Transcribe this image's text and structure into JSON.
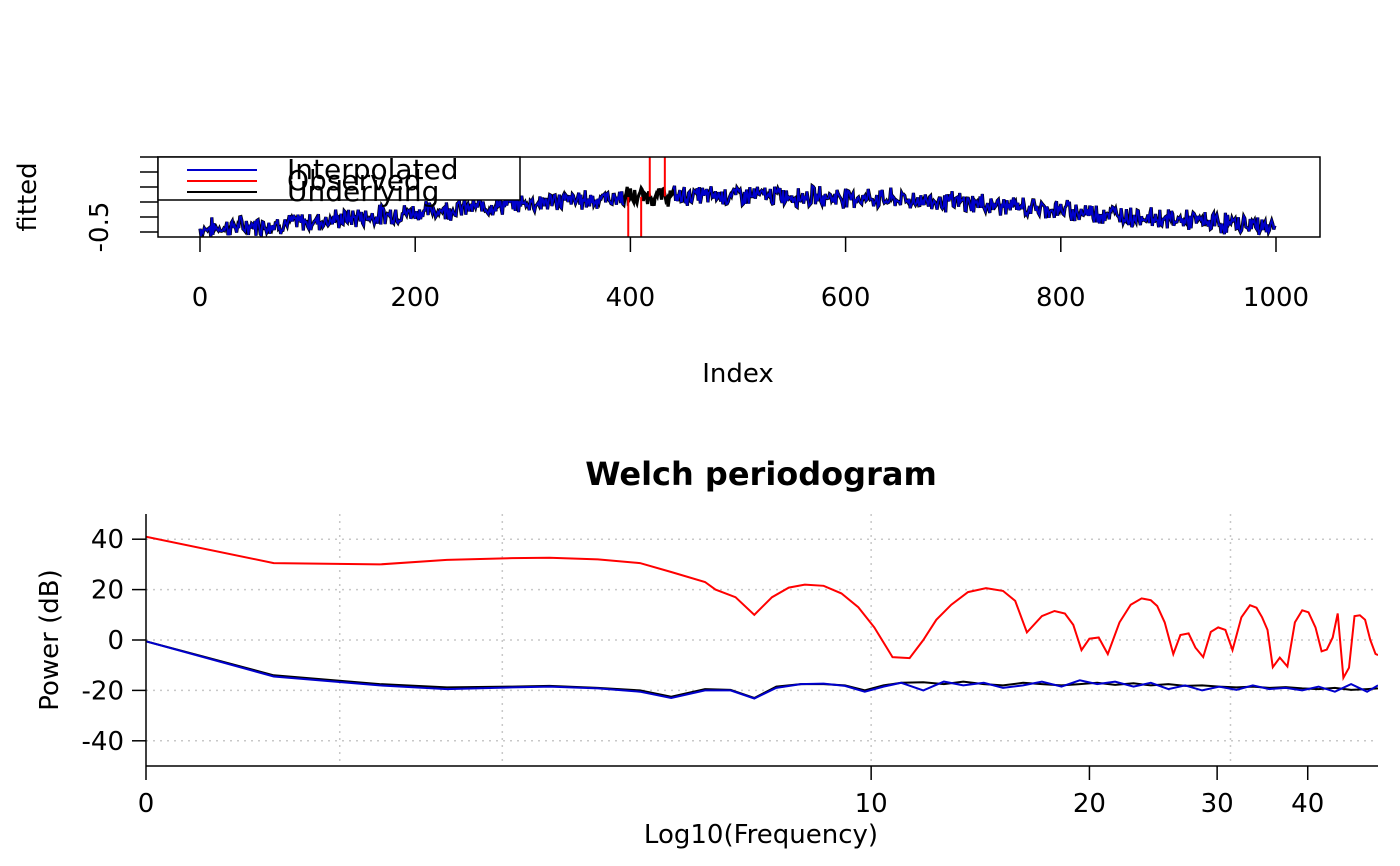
{
  "chart_data": [
    {
      "type": "line",
      "title": "",
      "xlabel": "Index",
      "ylabel": "fitted",
      "xlim": [
        0,
        1000
      ],
      "ylim": [
        -0.6,
        0.2
      ],
      "x_ticks": [
        "0",
        "200",
        "400",
        "600",
        "800",
        "1000"
      ],
      "y_ticks": [
        "-0.5"
      ],
      "legend": {
        "placement": "top-left",
        "entries": [
          {
            "label": "Interpolated",
            "color": "#0000CC"
          },
          {
            "label": "Observed",
            "color": "#FF0000"
          },
          {
            "label": "Underlying",
            "color": "#000000"
          }
        ]
      },
      "series": [
        {
          "name": "Interpolated",
          "color": "#0000CC",
          "n": 1000,
          "trend_x": [
            0,
            100,
            200,
            300,
            400,
            500,
            600,
            700,
            800,
            900,
            1000
          ],
          "trend_y": [
            -0.52,
            -0.45,
            -0.35,
            -0.26,
            -0.2,
            -0.18,
            -0.2,
            -0.25,
            -0.33,
            -0.42,
            -0.5
          ]
        },
        {
          "name": "Observed",
          "color": "#FF0000",
          "gap_spikes": [
            {
              "x": 398,
              "y": -0.6
            },
            {
              "x": 410,
              "y": -0.6
            },
            {
              "x": 418,
              "y": 0.2
            },
            {
              "x": 432,
              "y": 0.2
            }
          ]
        },
        {
          "name": "Underlying",
          "color": "#000000"
        }
      ]
    },
    {
      "type": "line",
      "title": "Welch periodogram",
      "xlabel": "Log10(Frequency)",
      "ylabel": "Power (dB)",
      "log_x": true,
      "xlim": [
        1,
        50
      ],
      "ylim": [
        -50,
        50
      ],
      "grid": true,
      "x_ticks": [
        {
          "value": 1,
          "label": "0"
        },
        {
          "value": 10,
          "label": "10"
        },
        {
          "value": 20,
          "label": "20"
        },
        {
          "value": 30,
          "label": "30"
        },
        {
          "value": 40,
          "label": "40"
        }
      ],
      "x_gridlines": [
        1.85,
        3.1,
        10,
        31.3
      ],
      "y_ticks": [
        40,
        20,
        0,
        -20,
        -40
      ],
      "series": [
        {
          "name": "Observed",
          "color": "#FF0000",
          "x": [
            1,
            1.5,
            2.1,
            2.6,
            3.2,
            3.6,
            4.2,
            4.8,
            5.3,
            5.9,
            6.1,
            6.5,
            6.9,
            7.3,
            7.7,
            8.1,
            8.6,
            9.1,
            9.6,
            10.1,
            10.7,
            11.3,
            11.8,
            12.3,
            12.9,
            13.6,
            14.4,
            15.2,
            15.8,
            16.4,
            17.2,
            17.9,
            18.5,
            19,
            19.5,
            20,
            20.6,
            21.2,
            22,
            22.8,
            23.6,
            24.3,
            24.8,
            25.4,
            26.1,
            26.7,
            27.4,
            28,
            28.7,
            29.4,
            30.1,
            30.8,
            31.5,
            32.4,
            33.3,
            34,
            34.6,
            35.2,
            35.8,
            36.6,
            37.5,
            38.4,
            39.3,
            40.1,
            41,
            41.8,
            42.5,
            43.3,
            44,
            44.8,
            45.6,
            46.4,
            47.2,
            48,
            48.8,
            49.6,
            50
          ],
          "y": [
            41,
            30.5,
            30,
            31.8,
            32.5,
            32.6,
            32,
            30.5,
            27,
            23,
            20,
            17,
            10,
            17,
            20.8,
            22,
            21.5,
            18.5,
            13,
            5,
            -6.8,
            -7.2,
            0,
            8,
            14,
            19,
            20.6,
            19.5,
            15.5,
            3,
            9.5,
            11.5,
            10.5,
            6,
            -4,
            0.5,
            1,
            -5.6,
            7,
            14,
            16.5,
            15.8,
            13.5,
            7,
            -5.6,
            2,
            2.6,
            -3,
            -6.8,
            3.2,
            5,
            4,
            -4,
            9,
            13.8,
            12.8,
            9,
            4,
            -10.8,
            -7,
            -10.5,
            7,
            11.8,
            11,
            5,
            -4.5,
            -3.8,
            1,
            10.5,
            -15,
            -11,
            9.5,
            9.8,
            8,
            0,
            -5.5,
            -6
          ]
        },
        {
          "name": "Underlying",
          "color": "#000000",
          "x": [
            1,
            1.5,
            2.1,
            2.6,
            3.2,
            3.6,
            4.2,
            4.8,
            5.3,
            5.9,
            6.4,
            6.9,
            7.4,
            8,
            8.6,
            9.2,
            9.8,
            10.4,
            11,
            11.8,
            12.6,
            13.4,
            14.3,
            15.2,
            16.2,
            17.2,
            18.3,
            19.4,
            20.5,
            21.7,
            23,
            24.3,
            25.7,
            27.1,
            28.6,
            30.2,
            31.9,
            33.6,
            35.4,
            37.3,
            39.3,
            41.4,
            43.6,
            45.9,
            48.3,
            50
          ],
          "y": [
            -0.5,
            -14,
            -17.5,
            -18.8,
            -18.5,
            -18.2,
            -19,
            -20,
            -22.5,
            -19.5,
            -19.8,
            -23,
            -18.5,
            -17.5,
            -17.5,
            -18,
            -20,
            -18,
            -17,
            -16.8,
            -17.5,
            -16.5,
            -17.5,
            -18,
            -17,
            -17.5,
            -18,
            -17.5,
            -17,
            -17.8,
            -17.2,
            -18,
            -17.5,
            -18.2,
            -18,
            -18.5,
            -18.8,
            -18.5,
            -19,
            -18.7,
            -19.2,
            -19.5,
            -19,
            -19.8,
            -19.5,
            -19.2
          ]
        },
        {
          "name": "Interpolated",
          "color": "#0000CC",
          "x": [
            1,
            1.5,
            2.1,
            2.6,
            3.2,
            3.6,
            4.2,
            4.8,
            5.3,
            5.9,
            6.4,
            6.9,
            7.4,
            8,
            8.6,
            9.2,
            9.8,
            10.4,
            11,
            11.8,
            12.6,
            13.4,
            14.3,
            15.2,
            16.2,
            17.2,
            18.3,
            19.4,
            20.5,
            21.7,
            23,
            24.3,
            25.7,
            27.1,
            28.6,
            30.2,
            31.9,
            33.6,
            35.4,
            37.3,
            39.3,
            41.4,
            43.6,
            45.9,
            48.3,
            50
          ],
          "y": [
            -0.5,
            -14.5,
            -18,
            -19.5,
            -18.8,
            -18.5,
            -19.2,
            -20.5,
            -23,
            -20,
            -20,
            -23.2,
            -19,
            -17.5,
            -17.3,
            -18.2,
            -20.5,
            -18.5,
            -17,
            -20,
            -16.5,
            -18,
            -17,
            -19,
            -18,
            -16.5,
            -18.5,
            -16,
            -17.5,
            -16.5,
            -18.5,
            -17,
            -19.5,
            -18,
            -20,
            -18.5,
            -19.8,
            -18,
            -19.5,
            -19,
            -20,
            -18.5,
            -20.5,
            -17.5,
            -20.5,
            -18
          ]
        }
      ]
    }
  ]
}
